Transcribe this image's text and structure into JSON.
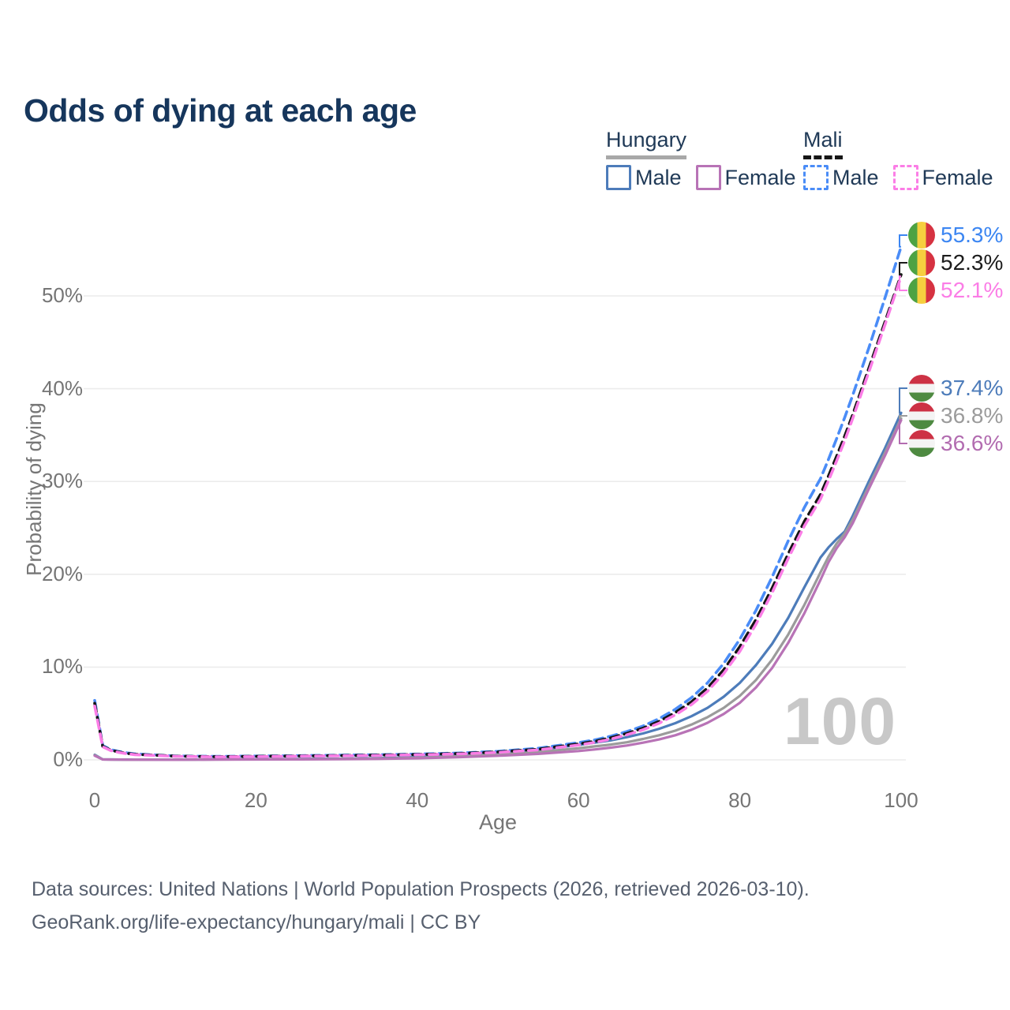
{
  "header": {
    "title": "Odds of dying at each age"
  },
  "legend": {
    "groups": [
      {
        "name": "Hungary",
        "line_style": "solid",
        "entries": [
          {
            "label": "Male",
            "color": "#4d7cba"
          },
          {
            "label": "Female",
            "color": "#b873b6"
          }
        ]
      },
      {
        "name": "Mali",
        "line_style": "dashed",
        "entries": [
          {
            "label": "Male",
            "color": "#4a8cf7"
          },
          {
            "label": "Female",
            "color": "#fb7de6"
          }
        ]
      }
    ]
  },
  "watermark": "100",
  "end_labels": [
    {
      "text": "55.3%",
      "pct": 55.3,
      "flag": "mali",
      "color": "#3c86f2",
      "series": "Mali Male"
    },
    {
      "text": "52.3%",
      "pct": 52.3,
      "flag": "mali",
      "color": "#1c1c1c",
      "series": "Mali Both sexes"
    },
    {
      "text": "52.1%",
      "pct": 52.1,
      "flag": "mali",
      "color": "#fb7de6",
      "series": "Mali Female"
    },
    {
      "text": "37.4%",
      "pct": 37.4,
      "flag": "hungary",
      "color": "#4d7cba",
      "series": "Hungary Male"
    },
    {
      "text": "36.8%",
      "pct": 36.8,
      "flag": "hungary",
      "color": "#9b9b9b",
      "series": "Hungary Both sexes"
    },
    {
      "text": "36.6%",
      "pct": 36.6,
      "flag": "hungary",
      "color": "#b26cb0",
      "series": "Hungary Female"
    }
  ],
  "chart_data": {
    "type": "line",
    "title": "Odds of dying at each age",
    "xlabel": "Age",
    "ylabel": "Probability of dying",
    "xlim": [
      0,
      100
    ],
    "ylim": [
      0,
      57
    ],
    "grid": true,
    "legend_position": "top-right",
    "x_ticks": [
      {
        "label": "0",
        "value": 0
      },
      {
        "label": "20",
        "value": 20
      },
      {
        "label": "40",
        "value": 40
      },
      {
        "label": "60",
        "value": 60
      },
      {
        "label": "80",
        "value": 80
      },
      {
        "label": "100",
        "value": 100
      }
    ],
    "y_ticks": [
      {
        "label": "0%",
        "value": 0
      },
      {
        "label": "10%",
        "value": 10
      },
      {
        "label": "20%",
        "value": 20
      },
      {
        "label": "30%",
        "value": 30
      },
      {
        "label": "40%",
        "value": 40
      },
      {
        "label": "50%",
        "value": 50
      }
    ],
    "unit": "percent probability of dying at each age",
    "ages": [
      0,
      1,
      2,
      3,
      4,
      5,
      10,
      15,
      20,
      25,
      30,
      35,
      40,
      45,
      50,
      55,
      60,
      62,
      64,
      66,
      68,
      70,
      72,
      74,
      76,
      78,
      80,
      82,
      84,
      86,
      88,
      90,
      91,
      92,
      93,
      94,
      96,
      98,
      100
    ],
    "series": [
      {
        "name": "Hungary Male",
        "country": "Hungary",
        "sex": "Male",
        "color": "#4d7cba",
        "dash": false,
        "end_value_pct": 37.4,
        "values": [
          0.55,
          0.05,
          0.04,
          0.03,
          0.03,
          0.02,
          0.02,
          0.05,
          0.08,
          0.1,
          0.12,
          0.18,
          0.3,
          0.5,
          0.78,
          1.1,
          1.6,
          1.85,
          2.1,
          2.45,
          2.85,
          3.35,
          3.95,
          4.7,
          5.6,
          6.8,
          8.3,
          10.2,
          12.5,
          15.3,
          18.6,
          21.8,
          22.9,
          23.8,
          24.6,
          26.3,
          30.0,
          33.6,
          37.4
        ]
      },
      {
        "name": "Hungary Both sexes",
        "country": "Hungary",
        "sex": "Both",
        "color": "#9b9b9b",
        "dash": false,
        "end_value_pct": 36.8,
        "values": [
          0.5,
          0.05,
          0.04,
          0.03,
          0.02,
          0.02,
          0.02,
          0.04,
          0.06,
          0.08,
          0.1,
          0.14,
          0.23,
          0.38,
          0.58,
          0.85,
          1.25,
          1.45,
          1.65,
          1.9,
          2.25,
          2.65,
          3.15,
          3.8,
          4.6,
          5.6,
          6.9,
          8.6,
          10.8,
          13.5,
          16.7,
          20.2,
          21.9,
          23.3,
          24.4,
          25.9,
          29.5,
          33.1,
          36.8
        ]
      },
      {
        "name": "Hungary Female",
        "country": "Hungary",
        "sex": "Female",
        "color": "#b873b6",
        "dash": false,
        "end_value_pct": 36.6,
        "values": [
          0.45,
          0.04,
          0.03,
          0.03,
          0.02,
          0.02,
          0.01,
          0.03,
          0.04,
          0.05,
          0.07,
          0.1,
          0.17,
          0.28,
          0.44,
          0.65,
          0.95,
          1.12,
          1.32,
          1.55,
          1.85,
          2.2,
          2.65,
          3.25,
          4.0,
          4.95,
          6.15,
          7.8,
          9.9,
          12.6,
          15.8,
          19.4,
          21.3,
          22.8,
          24.0,
          25.5,
          29.2,
          32.8,
          36.6
        ]
      },
      {
        "name": "Mali Male",
        "country": "Mali",
        "sex": "Male",
        "color": "#4a8cf7",
        "dash": true,
        "end_value_pct": 55.3,
        "values": [
          6.4,
          1.55,
          1.1,
          0.9,
          0.75,
          0.65,
          0.42,
          0.37,
          0.41,
          0.45,
          0.5,
          0.55,
          0.62,
          0.73,
          0.92,
          1.25,
          1.85,
          2.15,
          2.55,
          3.05,
          3.65,
          4.45,
          5.45,
          6.7,
          8.3,
          10.4,
          13.0,
          16.1,
          19.7,
          23.6,
          27.2,
          30.3,
          32.4,
          34.6,
          36.9,
          39.3,
          44.4,
          49.8,
          55.3
        ]
      },
      {
        "name": "Mali Both sexes",
        "country": "Mali",
        "sex": "Both",
        "color": "#141414",
        "dash": true,
        "end_value_pct": 52.3,
        "values": [
          6.1,
          1.45,
          1.05,
          0.85,
          0.7,
          0.6,
          0.4,
          0.34,
          0.38,
          0.42,
          0.46,
          0.51,
          0.58,
          0.68,
          0.86,
          1.15,
          1.72,
          2.0,
          2.38,
          2.85,
          3.42,
          4.15,
          5.1,
          6.25,
          7.75,
          9.7,
          12.2,
          15.1,
          18.5,
          22.2,
          25.7,
          28.6,
          30.6,
          32.7,
          34.9,
          37.2,
          42.2,
          47.2,
          52.3
        ]
      },
      {
        "name": "Mali Female",
        "country": "Mali",
        "sex": "Female",
        "color": "#fb7de6",
        "dash": true,
        "end_value_pct": 52.1,
        "values": [
          5.8,
          1.4,
          1.0,
          0.8,
          0.66,
          0.56,
          0.38,
          0.32,
          0.35,
          0.39,
          0.43,
          0.47,
          0.54,
          0.63,
          0.8,
          1.07,
          1.6,
          1.88,
          2.24,
          2.7,
          3.25,
          3.95,
          4.85,
          5.95,
          7.4,
          9.3,
          11.7,
          14.6,
          18.0,
          21.7,
          25.2,
          28.1,
          30.1,
          32.2,
          34.4,
          36.8,
          41.8,
          46.9,
          52.1
        ]
      }
    ]
  },
  "footer": {
    "line1": "Data sources: United Nations | World Population Prospects (2026, retrieved 2026-03-10).",
    "line2": "GeoRank.org/life-expectancy/hungary/mali | CC BY"
  }
}
